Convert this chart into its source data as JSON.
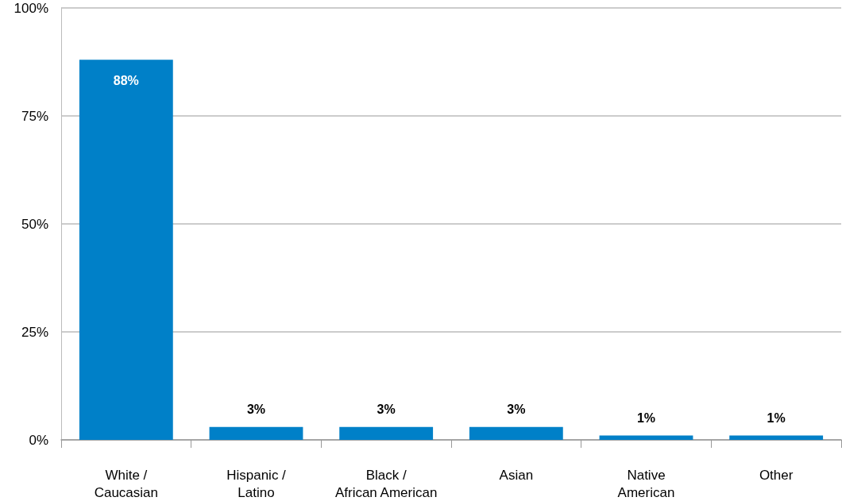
{
  "chart_data": {
    "type": "bar",
    "categories": [
      "White /\nCaucasian",
      "Hispanic /\nLatino",
      "Black /\nAfrican American",
      "Asian",
      "Native\nAmerican",
      "Other"
    ],
    "values": [
      88,
      3,
      3,
      3,
      1,
      1
    ],
    "color": "#0080c8",
    "ylim": [
      0,
      100
    ],
    "yticks": [
      {
        "value": 0,
        "label": "0%"
      },
      {
        "value": 25,
        "label": "25%"
      },
      {
        "value": 50,
        "label": "50%"
      },
      {
        "value": 75,
        "label": "75%"
      },
      {
        "value": 100,
        "label": "100%"
      }
    ],
    "value_labels": [
      "88%",
      "3%",
      "3%",
      "3%",
      "1%",
      "1%"
    ],
    "grid": "y"
  }
}
